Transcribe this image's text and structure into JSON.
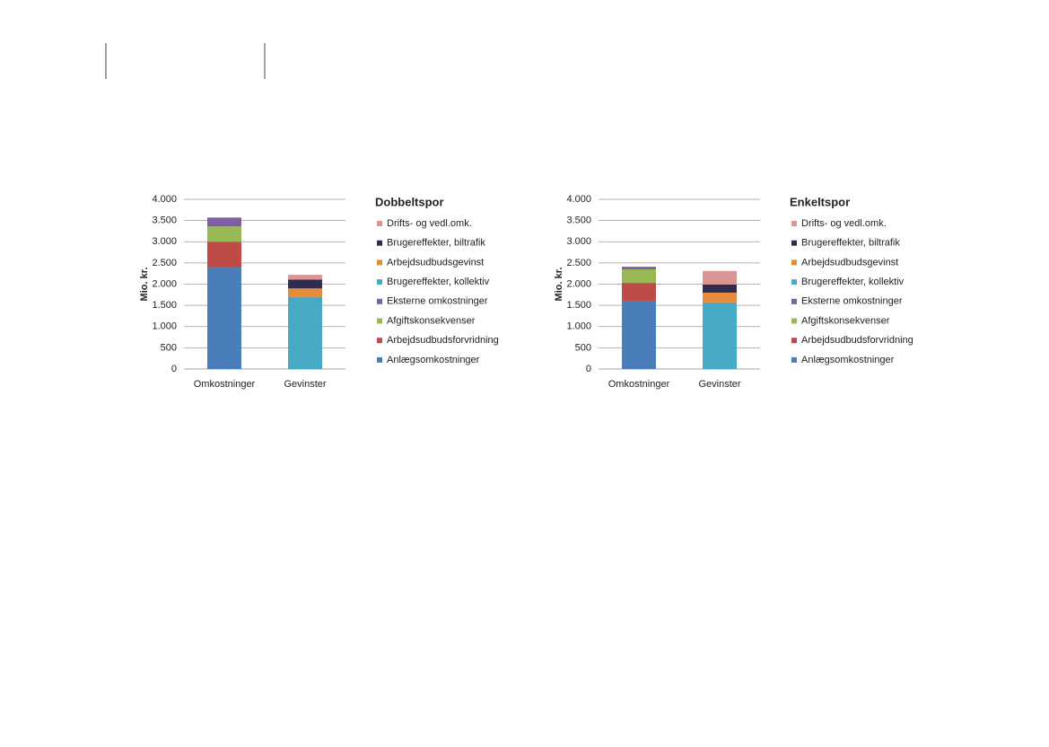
{
  "chart_data": [
    {
      "type": "stacked_bar",
      "title": "Dobbeltspor",
      "y_label": "Mio. kr.",
      "categories": [
        "Omkostninger",
        "Gevinster"
      ],
      "ylim": [
        0,
        4000
      ],
      "yticks": [
        0,
        500,
        {
          "value": 1000,
          "label": "1.000"
        },
        {
          "value": 1500,
          "label": "1.500"
        },
        {
          "value": 2000,
          "label": "2.000"
        },
        {
          "value": 2500,
          "label": "2.500"
        },
        {
          "value": 3000,
          "label": "3.000"
        },
        {
          "value": 3500,
          "label": "3.500"
        },
        {
          "value": 4000,
          "label": "4.000"
        }
      ],
      "grid": true,
      "series": [
        {
          "name": "Anlægsomkostninger",
          "color": "#4a7ebb",
          "values": [
            2390,
            0
          ]
        },
        {
          "name": "Arbejdsudbudsforvridning",
          "color": "#be4b48",
          "values": [
            610,
            0
          ]
        },
        {
          "name": "Afgiftskonsekvenser",
          "color": "#98b954",
          "values": [
            360,
            0
          ]
        },
        {
          "name": "Eksterne omkostninger",
          "color": "#7d60a0",
          "values": [
            210,
            0
          ]
        },
        {
          "name": "Brugereffekter, kollektiv",
          "color": "#46aac5",
          "values": [
            0,
            1700
          ]
        },
        {
          "name": "Arbejdsudbudsgevinst",
          "color": "#e58b3c",
          "values": [
            0,
            200
          ]
        },
        {
          "name": "Brugereffekter, biltrafik",
          "color": "#2f2c4f",
          "values": [
            0,
            210
          ]
        },
        {
          "name": "Drifts- og vedl.omk.",
          "color": "#d99694",
          "values": [
            0,
            110
          ]
        }
      ]
    },
    {
      "type": "stacked_bar",
      "title": "Enkeltspor",
      "y_label": "Mio. kr.",
      "categories": [
        "Omkostninger",
        "Gevinster"
      ],
      "ylim": [
        0,
        4000
      ],
      "yticks": [
        0,
        500,
        {
          "value": 1000,
          "label": "1.000"
        },
        {
          "value": 1500,
          "label": "1.500"
        },
        {
          "value": 2000,
          "label": "2.000"
        },
        {
          "value": 2500,
          "label": "2.500"
        },
        {
          "value": 3000,
          "label": "3.000"
        },
        {
          "value": 3500,
          "label": "3.500"
        },
        {
          "value": 4000,
          "label": "4.000"
        }
      ],
      "grid": true,
      "series": [
        {
          "name": "Anlægsomkostninger",
          "color": "#4a7ebb",
          "values": [
            1610,
            0
          ]
        },
        {
          "name": "Arbejdsudbudsforvridning",
          "color": "#be4b48",
          "values": [
            420,
            0
          ]
        },
        {
          "name": "Afgiftskonsekvenser",
          "color": "#98b954",
          "values": [
            320,
            0
          ]
        },
        {
          "name": "Eksterne omkostninger",
          "color": "#7d60a0",
          "values": [
            60,
            0
          ]
        },
        {
          "name": "Brugereffekter, kollektiv",
          "color": "#46aac5",
          "values": [
            0,
            1570
          ]
        },
        {
          "name": "Arbejdsudbudsgevinst",
          "color": "#e58b3c",
          "values": [
            0,
            230
          ]
        },
        {
          "name": "Brugereffekter, biltrafik",
          "color": "#2f2c4f",
          "values": [
            0,
            190
          ]
        },
        {
          "name": "Drifts- og vedl.omk.",
          "color": "#d99694",
          "values": [
            0,
            320
          ]
        }
      ]
    }
  ]
}
